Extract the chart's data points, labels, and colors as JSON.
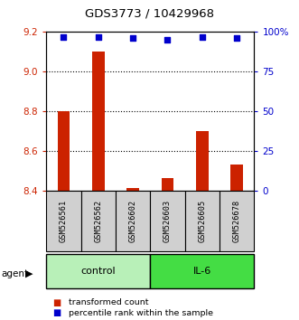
{
  "title": "GDS3773 / 10429968",
  "samples": [
    "GSM526561",
    "GSM526562",
    "GSM526602",
    "GSM526603",
    "GSM526605",
    "GSM526678"
  ],
  "red_values": [
    8.8,
    9.1,
    8.41,
    8.46,
    8.7,
    8.53
  ],
  "blue_values": [
    97,
    97,
    96,
    95,
    97,
    96
  ],
  "groups": [
    {
      "label": "control",
      "indices": [
        0,
        1,
        2
      ],
      "color": "#b8f0b8"
    },
    {
      "label": "IL-6",
      "indices": [
        3,
        4,
        5
      ],
      "color": "#44dd44"
    }
  ],
  "ylim_left": [
    8.4,
    9.2
  ],
  "ylim_right": [
    0,
    100
  ],
  "yticks_left": [
    8.4,
    8.6,
    8.8,
    9.0,
    9.2
  ],
  "yticks_right": [
    0,
    25,
    50,
    75,
    100
  ],
  "ytick_labels_right": [
    "0",
    "25",
    "50",
    "75",
    "100%"
  ],
  "grid_values": [
    9.0,
    8.8,
    8.6
  ],
  "red_color": "#cc2200",
  "blue_color": "#0000cc",
  "bar_baseline": 8.4,
  "bar_width": 0.35,
  "legend_red": "transformed count",
  "legend_blue": "percentile rank within the sample",
  "fig_width": 3.31,
  "fig_height": 3.54,
  "dpi": 100
}
